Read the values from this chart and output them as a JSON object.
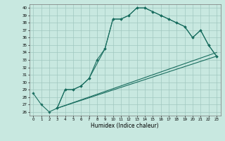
{
  "xlabel": "Humidex (Indice chaleur)",
  "bg_color": "#c8e8e0",
  "grid_color": "#a0c8c0",
  "line_color": "#1a6e60",
  "xlim": [
    -0.5,
    23.5
  ],
  "ylim": [
    25.5,
    40.5
  ],
  "line1_x": [
    0,
    1,
    2,
    3,
    4,
    5,
    6,
    7,
    8,
    9,
    10,
    11,
    12,
    13,
    14,
    15,
    16,
    17,
    18,
    19,
    20,
    21,
    22,
    23
  ],
  "line1_y": [
    28.5,
    27.0,
    26.0,
    26.5,
    29.0,
    29.0,
    29.5,
    30.5,
    33.0,
    34.5,
    38.5,
    38.5,
    39.0,
    40.0,
    40.0,
    39.5,
    39.0,
    38.5,
    38.0,
    37.5,
    36.0,
    37.0,
    35.0,
    33.5
  ],
  "line2_x": [
    3,
    4,
    5,
    6,
    7,
    9,
    10,
    11,
    12,
    13,
    14,
    15,
    16,
    17,
    18,
    19,
    20,
    21,
    22,
    23
  ],
  "line2_y": [
    26.5,
    29.0,
    29.0,
    29.5,
    30.5,
    34.5,
    38.5,
    38.5,
    39.0,
    40.0,
    40.0,
    39.5,
    39.0,
    38.5,
    38.0,
    37.5,
    36.0,
    37.0,
    35.0,
    33.5
  ],
  "line3_x": [
    3,
    23
  ],
  "line3_y": [
    26.5,
    33.5
  ],
  "line4_x": [
    3,
    23
  ],
  "line4_y": [
    26.5,
    34.0
  ]
}
